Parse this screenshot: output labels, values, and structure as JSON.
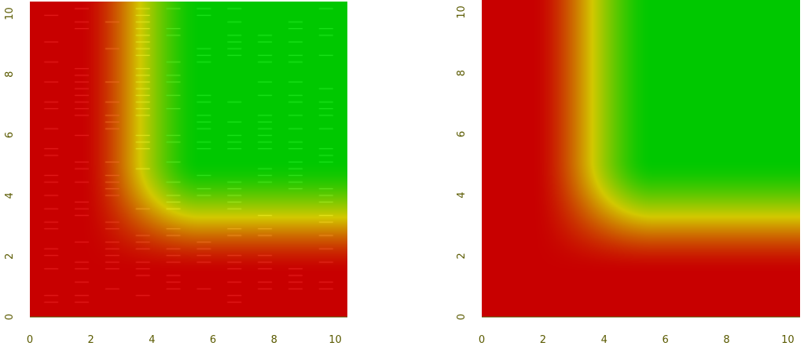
{
  "chart_data": [
    {
      "type": "heatmap",
      "title": "",
      "xlabel": "",
      "ylabel": "",
      "xlim": [
        0,
        10.4
      ],
      "ylim": [
        0,
        10.4
      ],
      "x_ticks": [
        0,
        2,
        4,
        6,
        8,
        10
      ],
      "y_ticks": [
        0,
        2,
        4,
        6,
        8,
        10
      ],
      "color_scale": [
        "#c80000",
        "#d2c800",
        "#00c800"
      ],
      "grid": false,
      "legend": "none",
      "texture": "horizontal streaks"
    },
    {
      "type": "heatmap",
      "title": "",
      "xlabel": "",
      "ylabel": "",
      "xlim": [
        0,
        10.4
      ],
      "ylim": [
        0,
        10.4
      ],
      "x_ticks": [
        0,
        2,
        4,
        6,
        8,
        10
      ],
      "y_ticks": [
        0,
        2,
        4,
        6,
        8,
        10
      ],
      "color_scale": [
        "#c80000",
        "#d2c800",
        "#00c800"
      ],
      "grid": false,
      "legend": "none",
      "texture": "smooth"
    }
  ]
}
